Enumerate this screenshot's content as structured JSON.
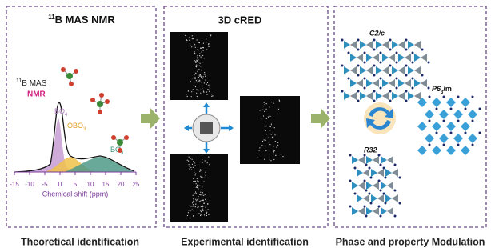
{
  "nmr_panel": {
    "title_sup": "11",
    "title": "B MAS NMR",
    "legend_sup": "11",
    "legend": "B MAS",
    "legend_2": "NMR",
    "peaks": [
      {
        "label": "BO",
        "sub": "4"
      },
      {
        "label": "OBO",
        "sub": "3"
      },
      {
        "label": "BO",
        "sub": "3"
      }
    ],
    "x_axis": {
      "label": "Chemical shift (ppm)",
      "ticks": [
        -15,
        -10,
        -5,
        0,
        5,
        10,
        15,
        20,
        25
      ]
    },
    "caption": "Theoretical identification"
  },
  "cred_panel": {
    "title": "3D cRED",
    "caption": "Experimental identification"
  },
  "phase_panel": {
    "structures": [
      {
        "label": "C2/c"
      },
      {
        "label": "P6",
        "sub": "3",
        "suffix": "/m"
      },
      {
        "label": "R32"
      }
    ],
    "caption": "Phase and property Modulation"
  }
}
